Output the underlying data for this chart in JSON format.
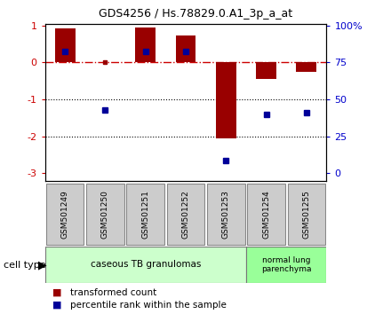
{
  "title": "GDS4256 / Hs.78829.0.A1_3p_a_at",
  "samples": [
    "GSM501249",
    "GSM501250",
    "GSM501251",
    "GSM501252",
    "GSM501253",
    "GSM501254",
    "GSM501255"
  ],
  "bar_values": [
    0.92,
    0.0,
    0.95,
    0.72,
    -2.05,
    -0.45,
    -0.25
  ],
  "percentile_values": [
    0.3,
    -1.3,
    0.3,
    0.3,
    -2.65,
    -1.4,
    -1.35
  ],
  "bar_color": "#990000",
  "percentile_color": "#000099",
  "zero_line_color": "#cc0000",
  "dotted_line_color": "#000000",
  "ylim": [
    -3.2,
    1.05
  ],
  "yticks": [
    1,
    0,
    -1,
    -2,
    -3
  ],
  "group1_label": "caseous TB granulomas",
  "group2_label": "normal lung\nparenchyma",
  "group1_count": 5,
  "group2_count": 2,
  "group1_color": "#ccffcc",
  "group2_color": "#99ff99",
  "sample_box_color": "#cccccc",
  "cell_type_label": "cell type",
  "legend_bar_label": "transformed count",
  "legend_pct_label": "percentile rank within the sample",
  "bar_width": 0.5,
  "figsize": [
    4.4,
    3.54
  ],
  "dpi": 100
}
